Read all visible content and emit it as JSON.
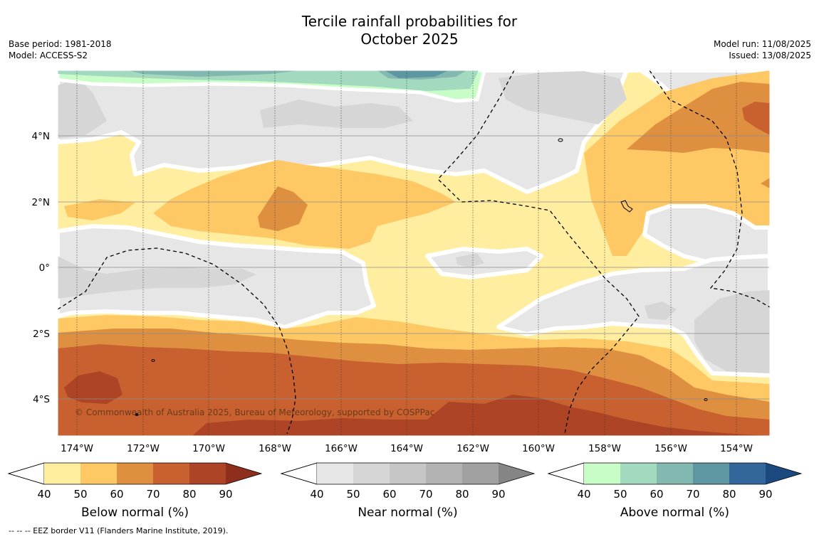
{
  "title": {
    "line1": "Tercile rainfall probabilities for",
    "line2": "October 2025"
  },
  "meta_left": {
    "base_period": "Base period: 1981-2018",
    "model": "Model: ACCESS-S2"
  },
  "meta_right": {
    "model_run": "Model run: 11/08/2025",
    "issued": "Issued: 13/08/2025"
  },
  "map": {
    "lon_range": [
      -174.6,
      -152.9
    ],
    "lat_range": [
      -5.0,
      5.8
    ],
    "lon_ticks": [
      "174°W",
      "172°W",
      "170°W",
      "168°W",
      "166°W",
      "164°W",
      "162°W",
      "160°W",
      "158°W",
      "156°W",
      "154°W"
    ],
    "lat_ticks": [
      "4°N",
      "2°N",
      "0°",
      "2°S",
      "4°S"
    ],
    "copyright": "© Commonwealth of Australia 2025, Bureau of Meteorology, supported by COSPPac"
  },
  "colorbars": [
    {
      "id": "below",
      "title": "Below normal (%)",
      "ticks": [
        "40",
        "50",
        "60",
        "70",
        "80",
        "90"
      ],
      "colors": [
        "#ffeda0",
        "#fec965",
        "#de9040",
        "#c8612f",
        "#ad4426",
        "#8e2f1d"
      ]
    },
    {
      "id": "near",
      "title": "Near normal (%)",
      "ticks": [
        "40",
        "50",
        "60",
        "70",
        "80",
        "90"
      ],
      "colors": [
        "#e6e6e6",
        "#d6d6d6",
        "#c6c6c6",
        "#b3b3b3",
        "#a1a1a1",
        "#858585"
      ]
    },
    {
      "id": "above",
      "title": "Above normal (%)",
      "ticks": [
        "40",
        "50",
        "60",
        "70",
        "80",
        "90"
      ],
      "colors": [
        "#c8fdc8",
        "#a3d9be",
        "#83b8b0",
        "#5e96a2",
        "#33669b",
        "#1a4a80"
      ]
    }
  ],
  "legend_note": "--  --  -- EEZ border V11 (Flanders Marine Institute, 2019)."
}
